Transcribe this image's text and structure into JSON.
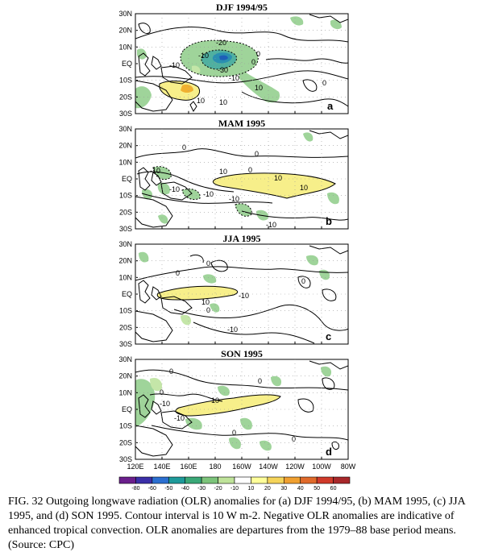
{
  "panels": [
    {
      "title": "DJF 1994/95",
      "tag": "a",
      "contour_labels": [
        "-20",
        "-10",
        "0",
        "-10",
        "-30",
        "0",
        "-10",
        "10",
        "10",
        "10",
        "0"
      ]
    },
    {
      "title": "MAM 1995",
      "tag": "b",
      "contour_labels": [
        "0",
        "0",
        "-10",
        "-10",
        "10",
        "10",
        "-10",
        "0",
        "10",
        "-10",
        "-10"
      ]
    },
    {
      "title": "JJA 1995",
      "tag": "c",
      "contour_labels": [
        "0",
        "0",
        "0",
        "10",
        "-10",
        "0",
        "-10"
      ]
    },
    {
      "title": "SON 1995",
      "tag": "d",
      "contour_labels": [
        "0",
        "0",
        "0",
        "10",
        "-10",
        "-10",
        "0",
        "0"
      ]
    }
  ],
  "lat_labels": [
    "30N",
    "20N",
    "10N",
    "EQ",
    "10S",
    "20S",
    "30S"
  ],
  "lon_labels": [
    "120E",
    "140E",
    "160E",
    "180",
    "160W",
    "140W",
    "120W",
    "100W",
    "80W"
  ],
  "colorbar": {
    "labels": [
      "-80",
      "-60",
      "-50",
      "-40",
      "-30",
      "-20",
      "-10",
      "10",
      "20",
      "30",
      "40",
      "50",
      "60"
    ],
    "colors": [
      "#6b1f8c",
      "#3b2fa8",
      "#2b6fd0",
      "#1e9a9a",
      "#3aa877",
      "#7cc47a",
      "#bfe39a",
      "#ffffff",
      "#ffff9a",
      "#f5d45a",
      "#f0a030",
      "#e06a2a",
      "#d03a2a",
      "#a8282a"
    ]
  },
  "caption": "FIG. 32 Outgoing longwave radiation (OLR) anomalies for (a) DJF 1994/95, (b) MAM 1995, (c) JJA 1995, and (d) SON 1995. Contour interval is 10 W m-2. Negative OLR anomalies are indicative of enhanced tropical convection. OLR anomalies are departures from the 1979–88 base period means. (Source: CPC)"
}
